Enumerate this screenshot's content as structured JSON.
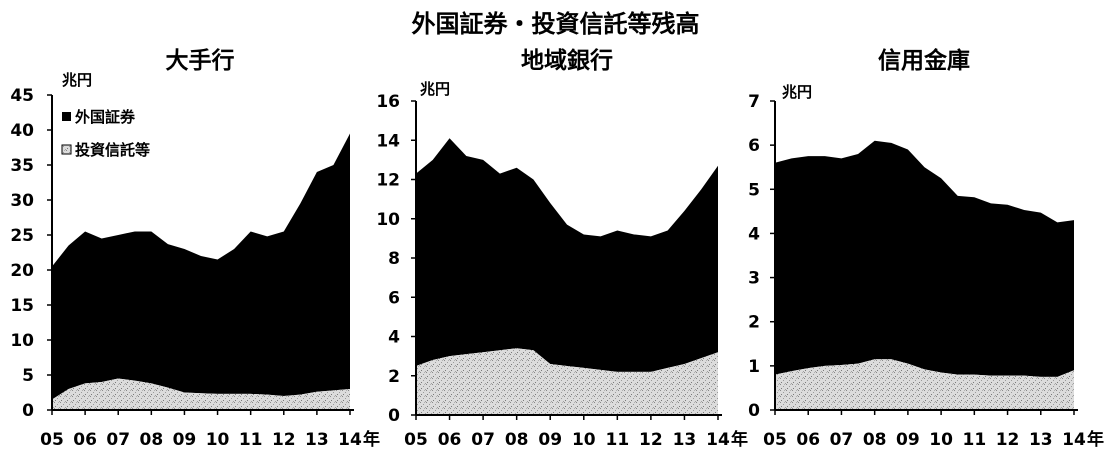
{
  "title": "外国証券・投資信託等残高",
  "chart_data": [
    {
      "type": "area",
      "stacked": true,
      "title": "大手行",
      "ylabel": "兆円",
      "xunit": "年",
      "ylim": [
        0,
        45
      ],
      "yticks": [
        0,
        5,
        10,
        15,
        20,
        25,
        30,
        35,
        40,
        45
      ],
      "xtick_labels": [
        "05",
        "06",
        "07",
        "08",
        "09",
        "10",
        "11",
        "12",
        "13",
        "14"
      ],
      "legend": [
        "外国証券",
        "投資信託等"
      ],
      "legend_position": "top-left",
      "x": [
        2005.0,
        2005.5,
        2006.0,
        2006.5,
        2007.0,
        2007.5,
        2008.0,
        2008.5,
        2009.0,
        2009.5,
        2010.0,
        2010.5,
        2011.0,
        2011.5,
        2012.0,
        2012.5,
        2013.0,
        2013.5,
        2014.0
      ],
      "series": [
        {
          "name": "投資信託等",
          "color": "#d2d2d2",
          "values": [
            1.5,
            3.0,
            3.8,
            4.0,
            4.5,
            4.2,
            3.8,
            3.2,
            2.5,
            2.4,
            2.3,
            2.3,
            2.3,
            2.2,
            2.0,
            2.2,
            2.6,
            2.8,
            3.0
          ]
        },
        {
          "name": "外国証券",
          "color": "#000000",
          "values": [
            19.0,
            20.5,
            21.7,
            20.5,
            20.5,
            21.3,
            21.7,
            20.5,
            20.5,
            19.6,
            19.2,
            20.7,
            23.2,
            22.6,
            23.5,
            27.3,
            31.4,
            32.2,
            36.5
          ]
        }
      ]
    },
    {
      "type": "area",
      "stacked": true,
      "title": "地域銀行",
      "ylabel": "兆円",
      "xunit": "年",
      "ylim": [
        0,
        16
      ],
      "yticks": [
        0,
        2,
        4,
        6,
        8,
        10,
        12,
        14,
        16
      ],
      "xtick_labels": [
        "05",
        "06",
        "07",
        "08",
        "09",
        "10",
        "11",
        "12",
        "13",
        "14"
      ],
      "x": [
        2005.0,
        2005.5,
        2006.0,
        2006.5,
        2007.0,
        2007.5,
        2008.0,
        2008.5,
        2009.0,
        2009.5,
        2010.0,
        2010.5,
        2011.0,
        2011.5,
        2012.0,
        2012.5,
        2013.0,
        2013.5,
        2014.0
      ],
      "series": [
        {
          "name": "投資信託等",
          "color": "#d2d2d2",
          "values": [
            2.5,
            2.8,
            3.0,
            3.1,
            3.2,
            3.3,
            3.4,
            3.3,
            2.6,
            2.5,
            2.4,
            2.3,
            2.2,
            2.2,
            2.2,
            2.4,
            2.6,
            2.9,
            3.2
          ]
        },
        {
          "name": "外国証券",
          "color": "#000000",
          "values": [
            9.8,
            10.2,
            11.1,
            10.1,
            9.8,
            9.0,
            9.2,
            8.7,
            8.2,
            7.2,
            6.8,
            6.8,
            7.2,
            7.0,
            6.9,
            7.0,
            7.8,
            8.6,
            9.5
          ]
        }
      ]
    },
    {
      "type": "area",
      "stacked": true,
      "title": "信用金庫",
      "ylabel": "兆円",
      "xunit": "年",
      "ylim": [
        0,
        7
      ],
      "yticks": [
        0,
        1,
        2,
        3,
        4,
        5,
        6,
        7
      ],
      "xtick_labels": [
        "05",
        "06",
        "07",
        "08",
        "09",
        "10",
        "11",
        "12",
        "13",
        "14"
      ],
      "x": [
        2005.0,
        2005.5,
        2006.0,
        2006.5,
        2007.0,
        2007.5,
        2008.0,
        2008.5,
        2009.0,
        2009.5,
        2010.0,
        2010.5,
        2011.0,
        2011.5,
        2012.0,
        2012.5,
        2013.0,
        2013.5,
        2014.0
      ],
      "series": [
        {
          "name": "投資信託等",
          "color": "#d2d2d2",
          "values": [
            0.8,
            0.88,
            0.95,
            1.0,
            1.02,
            1.05,
            1.15,
            1.15,
            1.05,
            0.92,
            0.85,
            0.8,
            0.8,
            0.78,
            0.78,
            0.78,
            0.75,
            0.75,
            0.9
          ]
        },
        {
          "name": "外国証券",
          "color": "#000000",
          "values": [
            4.8,
            4.82,
            4.8,
            4.75,
            4.68,
            4.75,
            4.95,
            4.9,
            4.85,
            4.58,
            4.4,
            4.05,
            4.02,
            3.9,
            3.87,
            3.75,
            3.72,
            3.5,
            3.4
          ]
        }
      ]
    }
  ]
}
